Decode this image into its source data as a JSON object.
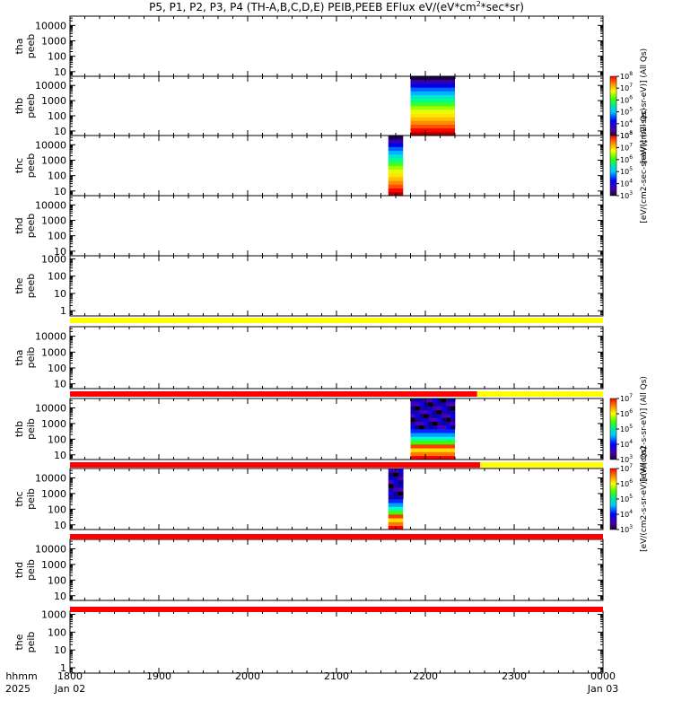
{
  "title_parts": {
    "a": "P5, P1, P2, P3, P4 (TH-A,B,C,D,E) PEIB,PEEB EFlux eV/(eV*cm",
    "sup": "2",
    "b": "*sec*sr)"
  },
  "time_axis": {
    "tick_labels": [
      "1800",
      "1900",
      "2000",
      "2100",
      "2200",
      "2300",
      "0000"
    ],
    "date_start": "Jan 02",
    "date_end": "Jan 03",
    "corner_line1": "hhmm",
    "corner_line2": "2025",
    "start_hhmm": 1800,
    "end_hhmm": 2400
  },
  "colorbars": [
    {
      "label": "[eV/(cm2-sec-sr-eV)] (All Qs)",
      "exp_min": 3,
      "exp_max": 8,
      "panel": "thb_peeb"
    },
    {
      "label": "[eV/(cm2-sec-sr-eV)] (All Qs)",
      "exp_min": 3,
      "exp_max": 8,
      "panel": "thc_peeb"
    },
    {
      "label": "[eV/(cm2-s-sr-eV)] (All Qs)",
      "exp_min": 3,
      "exp_max": 7,
      "panel": "thb_peib"
    },
    {
      "label": "[eV/(cm2-s-sr-eV)] (All Qs)",
      "exp_min": 3,
      "exp_max": 7,
      "panel": "thc_peib"
    }
  ],
  "chart_data": {
    "type": "heatmap",
    "x_unit": "UT hhmm",
    "x_range": [
      1800,
      2400
    ],
    "panels": [
      {
        "id": "tha_peeb",
        "label1": "tha",
        "label2": "peeb",
        "ymin": 5,
        "ymax": 40000,
        "ticks": [
          "10",
          "100",
          "1000",
          "10000"
        ],
        "data_blocks": []
      },
      {
        "id": "thb_peeb",
        "label1": "thb",
        "label2": "peeb",
        "ymin": 5,
        "ymax": 40000,
        "ticks": [
          "10",
          "100",
          "1000",
          "10000"
        ],
        "data_blocks": [
          {
            "x_start": 2150,
            "x_end": 2220,
            "kind": "electron"
          }
        ]
      },
      {
        "id": "thc_peeb",
        "label1": "thc",
        "label2": "peeb",
        "ymin": 5,
        "ymax": 40000,
        "ticks": [
          "10",
          "100",
          "1000",
          "10000"
        ],
        "data_blocks": [
          {
            "x_start": 2135,
            "x_end": 2145,
            "kind": "electron"
          }
        ]
      },
      {
        "id": "thd_peeb",
        "label1": "thd",
        "label2": "peeb",
        "ymin": 5,
        "ymax": 40000,
        "ticks": [
          "10",
          "100",
          "1000",
          "10000"
        ],
        "data_blocks": []
      },
      {
        "id": "the_peeb",
        "label1": "the",
        "label2": "peeb",
        "ymin": 0.5,
        "ymax": 1500,
        "ticks": [
          "1",
          "10",
          "100",
          "1000"
        ],
        "data_blocks": []
      },
      {
        "id": "tha_peib",
        "label1": "tha",
        "label2": "peib",
        "ymin": 5,
        "ymax": 40000,
        "ticks": [
          "10",
          "100",
          "1000",
          "10000"
        ],
        "data_blocks": []
      },
      {
        "id": "thb_peib",
        "label1": "thb",
        "label2": "peib",
        "ymin": 5,
        "ymax": 40000,
        "ticks": [
          "10",
          "100",
          "1000",
          "10000"
        ],
        "data_blocks": [
          {
            "x_start": 2150,
            "x_end": 2220,
            "kind": "ion"
          }
        ]
      },
      {
        "id": "thc_peib",
        "label1": "thc",
        "label2": "peib",
        "ymin": 5,
        "ymax": 40000,
        "ticks": [
          "10",
          "100",
          "1000",
          "10000"
        ],
        "data_blocks": [
          {
            "x_start": 2135,
            "x_end": 2145,
            "kind": "ion"
          }
        ]
      },
      {
        "id": "thd_peib",
        "label1": "thd",
        "label2": "peib",
        "ymin": 5,
        "ymax": 40000,
        "ticks": [
          "10",
          "100",
          "1000",
          "10000"
        ],
        "data_blocks": []
      },
      {
        "id": "the_peib",
        "label1": "the",
        "label2": "peib",
        "ymin": 0.5,
        "ymax": 1500,
        "ticks": [
          "1",
          "10",
          "100",
          "1000"
        ],
        "data_blocks": []
      }
    ],
    "status_bars": [
      {
        "after": "the_peeb",
        "segments": [
          {
            "x_start": 1800,
            "x_end": 2400,
            "color": "#ffff00"
          }
        ]
      },
      {
        "after": "tha_peib",
        "segments": [
          {
            "x_start": 1800,
            "x_end": 2235,
            "color": "#ff0000"
          },
          {
            "x_start": 2235,
            "x_end": 2400,
            "color": "#ffff00"
          }
        ]
      },
      {
        "after": "thb_peib",
        "segments": [
          {
            "x_start": 1800,
            "x_end": 2237,
            "color": "#ff0000"
          },
          {
            "x_start": 2237,
            "x_end": 2400,
            "color": "#ffff00"
          }
        ]
      },
      {
        "after": "thc_peib",
        "segments": [
          {
            "x_start": 1800,
            "x_end": 2400,
            "color": "#ff0000"
          }
        ]
      },
      {
        "after": "thd_peib",
        "segments": [
          {
            "x_start": 1800,
            "x_end": 2400,
            "color": "#ff0000"
          }
        ]
      }
    ]
  }
}
